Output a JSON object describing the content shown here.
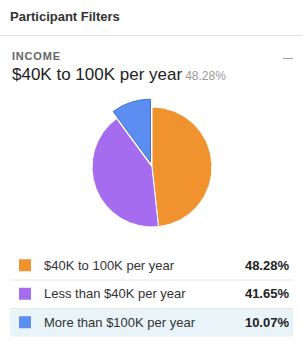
{
  "chart_data": {
    "type": "pie",
    "title": "Participant Filters",
    "subtitle": "INCOME",
    "categories": [
      "$40K to 100K per year",
      "Less than $40K per year",
      "More than $100K per year"
    ],
    "values": [
      48.28,
      41.65,
      10.07
    ],
    "value_labels": [
      "48.28%",
      "41.65%",
      "10.07%"
    ],
    "colors": [
      "#f0922e",
      "#a56cf0",
      "#5b8ef0"
    ],
    "legend": "bottom"
  }
}
